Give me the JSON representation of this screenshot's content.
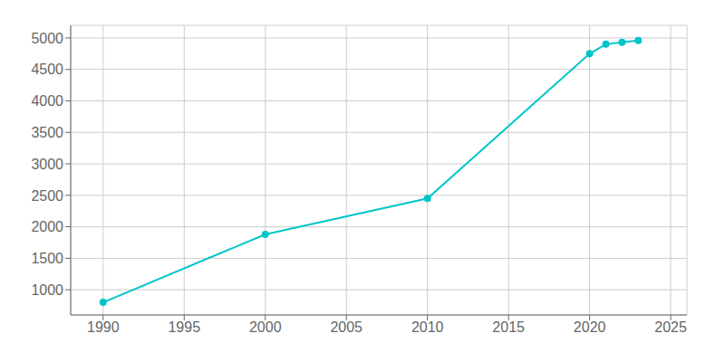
{
  "chart_data": {
    "type": "line",
    "x": [
      1990,
      2000,
      2010,
      2020,
      2021,
      2022,
      2023
    ],
    "values": [
      800,
      1880,
      2450,
      4750,
      4900,
      4930,
      4960
    ],
    "color": "#00C5C8",
    "marker": "circle",
    "xlim": [
      1988,
      2026
    ],
    "ylim": [
      600,
      5200
    ],
    "xticks": [
      1990,
      1995,
      2000,
      2005,
      2010,
      2015,
      2020,
      2025
    ],
    "yticks": [
      1000,
      1500,
      2000,
      2500,
      3000,
      3500,
      4000,
      4500,
      5000
    ],
    "grid": true
  }
}
